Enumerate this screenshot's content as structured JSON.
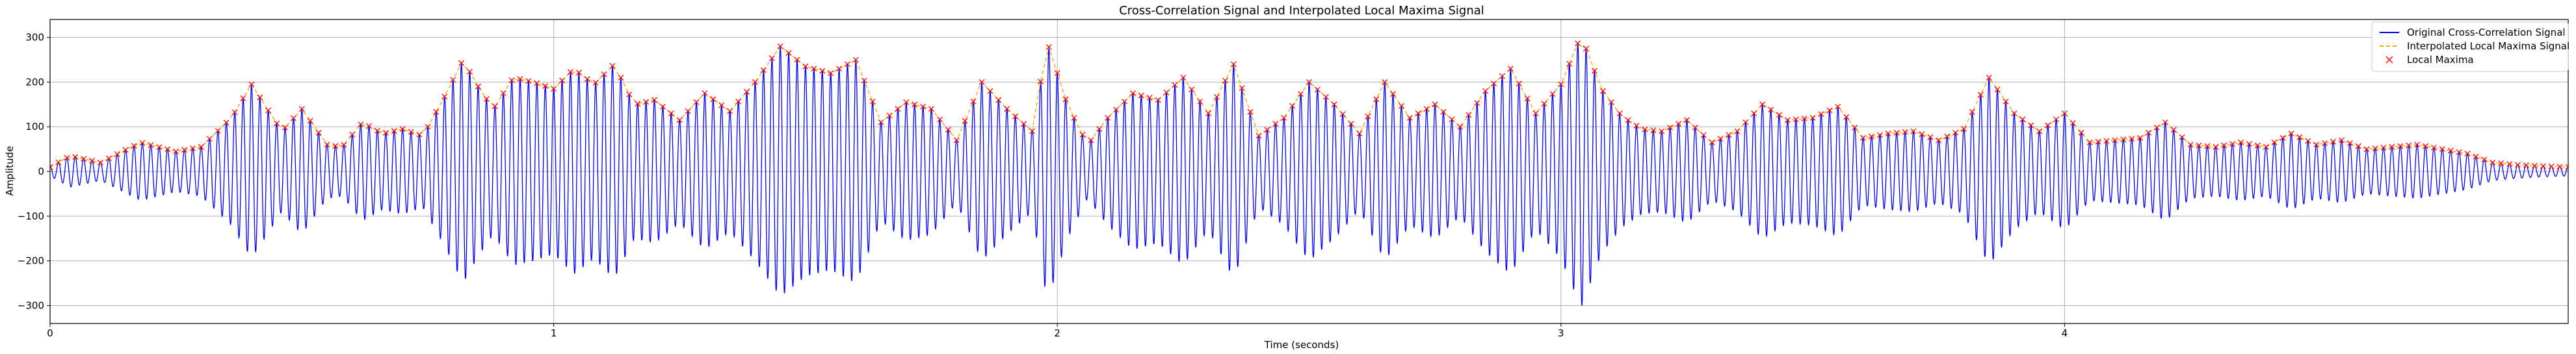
{
  "chart_data": {
    "type": "line",
    "title": "Cross-Correlation Signal and Interpolated Local Maxima Signal",
    "xlabel": "Time (seconds)",
    "ylabel": "Amplitude",
    "xlim": [
      0,
      5
    ],
    "ylim": [
      -340,
      340
    ],
    "xticks": [
      0,
      1,
      2,
      3,
      4
    ],
    "yticks": [
      -300,
      -200,
      -100,
      0,
      100,
      200,
      300
    ],
    "grid": true,
    "legend_position": "top-right",
    "carrier_frequency_hz": 60,
    "envelope": {
      "x": [
        0,
        0.04,
        0.1,
        0.18,
        0.25,
        0.3,
        0.36,
        0.4,
        0.42,
        0.46,
        0.5,
        0.55,
        0.58,
        0.62,
        0.66,
        0.7,
        0.74,
        0.78,
        0.82,
        0.85,
        0.88,
        0.92,
        0.96,
        1.0,
        1.04,
        1.08,
        1.12,
        1.16,
        1.2,
        1.25,
        1.3,
        1.35,
        1.4,
        1.45,
        1.5,
        1.55,
        1.6,
        1.65,
        1.7,
        1.75,
        1.8,
        1.85,
        1.9,
        1.95,
        1.98,
        2.02,
        2.06,
        2.1,
        2.15,
        2.2,
        2.25,
        2.3,
        2.35,
        2.4,
        2.45,
        2.5,
        2.55,
        2.6,
        2.65,
        2.7,
        2.75,
        2.8,
        2.85,
        2.9,
        2.95,
        3.0,
        3.04,
        3.08,
        3.12,
        3.16,
        3.2,
        3.25,
        3.3,
        3.35,
        3.4,
        3.45,
        3.5,
        3.55,
        3.6,
        3.65,
        3.7,
        3.75,
        3.8,
        3.85,
        3.9,
        3.95,
        4.0,
        4.05,
        4.1,
        4.15,
        4.2,
        4.25,
        4.3,
        4.35,
        4.4,
        4.45,
        4.5,
        4.55,
        4.6,
        4.65,
        4.7,
        4.75,
        4.8,
        4.85,
        4.9,
        4.95,
        5.0
      ],
      "y": [
        10,
        35,
        20,
        65,
        45,
        55,
        120,
        195,
        160,
        90,
        140,
        60,
        55,
        110,
        85,
        95,
        80,
        160,
        250,
        190,
        140,
        210,
        200,
        185,
        230,
        195,
        240,
        150,
        160,
        115,
        175,
        135,
        200,
        280,
        235,
        220,
        250,
        110,
        155,
        140,
        70,
        200,
        140,
        90,
        290,
        150,
        60,
        120,
        175,
        160,
        210,
        130,
        240,
        80,
        120,
        200,
        150,
        85,
        200,
        120,
        150,
        100,
        180,
        230,
        130,
        195,
        305,
        185,
        125,
        95,
        90,
        115,
        65,
        90,
        150,
        115,
        120,
        145,
        75,
        85,
        90,
        70,
        95,
        210,
        130,
        90,
        130,
        65,
        70,
        75,
        110,
        60,
        55,
        65,
        55,
        85,
        60,
        70,
        50,
        55,
        60,
        50,
        40,
        20,
        15,
        12,
        10
      ]
    },
    "series": [
      {
        "name": "Original Cross-Correlation Signal",
        "color": "#0000ff",
        "style": "solid"
      },
      {
        "name": "Interpolated Local Maxima Signal",
        "color": "#ffa500",
        "style": "dashed"
      },
      {
        "name": "Local Maxima",
        "color": "#ff0000",
        "style": "x-marker"
      }
    ]
  }
}
